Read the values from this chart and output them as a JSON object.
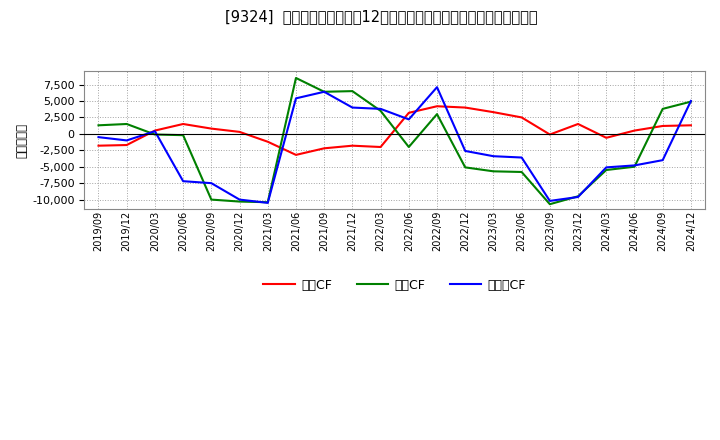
{
  "title": "[9324]  キャッシュフローの12か月移動合計の対前年同期増減額の推移",
  "ylabel": "（百万円）",
  "background_color": "#ffffff",
  "plot_bg_color": "#ffffff",
  "grid_color": "#999999",
  "xlabels": [
    "2019/09",
    "2019/12",
    "2020/03",
    "2020/06",
    "2020/09",
    "2020/12",
    "2021/03",
    "2021/06",
    "2021/09",
    "2021/12",
    "2022/03",
    "2022/06",
    "2022/09",
    "2022/12",
    "2023/03",
    "2023/06",
    "2023/09",
    "2023/12",
    "2024/03",
    "2024/06",
    "2024/09",
    "2024/12"
  ],
  "operating_cf": [
    -1800,
    -1700,
    500,
    1500,
    800,
    300,
    -1200,
    -3200,
    -2200,
    -1800,
    -2000,
    3200,
    4200,
    4000,
    3300,
    2500,
    -100,
    1500,
    -600,
    500,
    1200,
    1300
  ],
  "investing_cf": [
    1300,
    1500,
    -100,
    -200,
    -10000,
    -10300,
    -10400,
    8500,
    6400,
    6500,
    3500,
    -2000,
    3000,
    -5100,
    -5700,
    -5800,
    -10700,
    -9500,
    -5500,
    -5000,
    3800,
    4900
  ],
  "free_cf": [
    -500,
    -1000,
    400,
    -7200,
    -7500,
    -10000,
    -10500,
    5400,
    6400,
    4000,
    3800,
    2200,
    7100,
    -2600,
    -3400,
    -3600,
    -10200,
    -9600,
    -5100,
    -4800,
    -4000,
    5000
  ],
  "operating_color": "#ff0000",
  "investing_color": "#008000",
  "free_color": "#0000ff",
  "legend_labels": [
    "営業CF",
    "投資CF",
    "フリーCF"
  ],
  "ylim": [
    -11500,
    9500
  ],
  "yticks": [
    -10000,
    -7500,
    -5000,
    -2500,
    0,
    2500,
    5000,
    7500
  ],
  "line_width": 1.5
}
